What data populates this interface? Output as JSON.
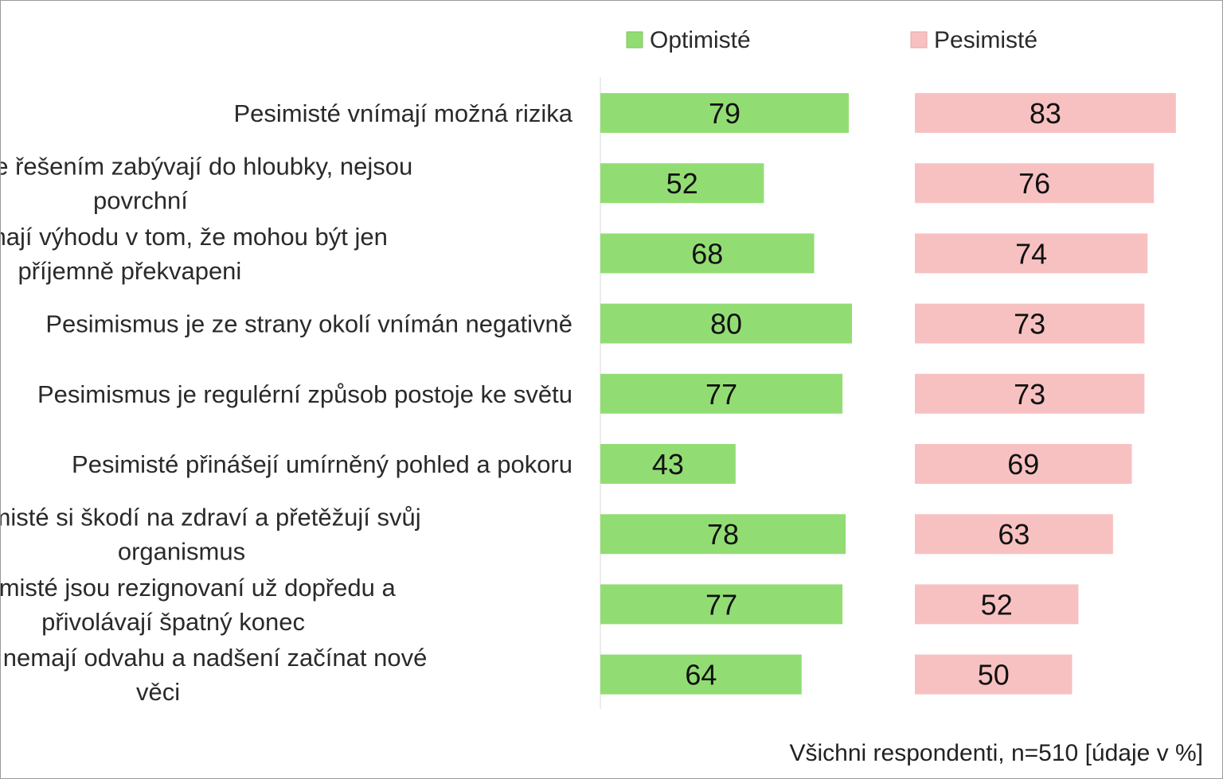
{
  "chart_data": {
    "type": "bar",
    "orientation": "horizontal",
    "categories": [
      "Pesimisté vnímají možná rizika",
      "Pesimisté se řešením zabývají do hloubky, nejsou povrchní",
      "Pesimisté mají výhodu v tom, že mohou být jen příjemně překvapeni",
      "Pesimismus je ze strany okolí vnímán negativně",
      "Pesimismus je regulérní způsob postoje ke světu",
      "Pesimisté přinášejí umírněný pohled a pokoru",
      "Pesimisté si škodí na zdraví a přetěžují svůj organismus",
      "Pesimisté jsou rezignovaní už dopředu a přivolávají špatný konec",
      "Pesimisté nemají odvahu a nadšení začínat nové věci"
    ],
    "category_lines": [
      [
        "Pesimisté vnímají možná rizika"
      ],
      [
        "Pesimisté se řešením zabývají do hloubky, nejsou",
        "povrchní"
      ],
      [
        "Pesimisté mají výhodu v tom, že mohou být jen",
        "příjemně překvapeni"
      ],
      [
        "Pesimismus je ze strany okolí vnímán negativně"
      ],
      [
        "Pesimismus je regulérní způsob postoje ke světu"
      ],
      [
        "Pesimisté přinášejí umírněný pohled a pokoru"
      ],
      [
        "Pesimisté si škodí na zdraví a přetěžují svůj",
        "organismus"
      ],
      [
        "Pesimisté jsou rezignovaní už dopředu a",
        "přivolávají špatný konec"
      ],
      [
        "Pesimisté nemají odvahu a nadšení začínat nové",
        "věci"
      ]
    ],
    "series": [
      {
        "name": "Optimisté",
        "color": "#92dd73",
        "values": [
          79,
          52,
          68,
          80,
          77,
          43,
          78,
          77,
          64
        ]
      },
      {
        "name": "Pesimisté",
        "color": "#f8c1c1",
        "values": [
          83,
          76,
          74,
          73,
          73,
          69,
          63,
          52,
          50
        ]
      }
    ],
    "xlim": [
      0,
      100
    ],
    "legend_position": "top",
    "grid": false,
    "data_labels": true,
    "title": "",
    "xlabel": "",
    "ylabel": ""
  },
  "footnote": "Všichni respondenti, n=510 [údaje v %]"
}
